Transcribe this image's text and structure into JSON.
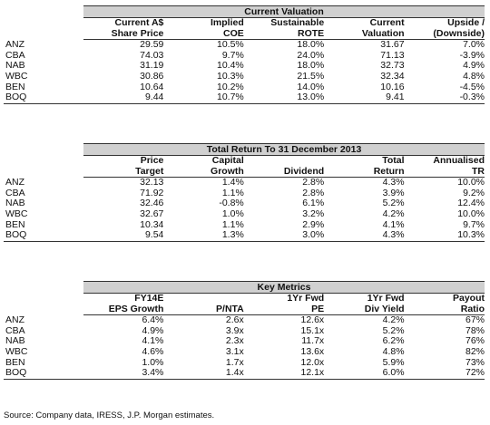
{
  "banks": [
    "ANZ",
    "CBA",
    "NAB",
    "WBC",
    "BEN",
    "BOQ"
  ],
  "current_valuation": {
    "title": "Current Valuation",
    "headers": [
      [
        "Current A$",
        "Share Price"
      ],
      [
        "Implied",
        "COE"
      ],
      [
        "Sustainable",
        "ROTE"
      ],
      [
        "Current",
        "Valuation"
      ],
      [
        "Upside /",
        "(Downside)"
      ]
    ],
    "rows": [
      [
        "29.59",
        "10.5%",
        "18.0%",
        "31.67",
        "7.0%"
      ],
      [
        "74.03",
        "9.7%",
        "24.0%",
        "71.13",
        "-3.9%"
      ],
      [
        "31.19",
        "10.4%",
        "18.0%",
        "32.73",
        "4.9%"
      ],
      [
        "30.86",
        "10.3%",
        "21.5%",
        "32.34",
        "4.8%"
      ],
      [
        "10.64",
        "10.2%",
        "14.0%",
        "10.16",
        "-4.5%"
      ],
      [
        "9.44",
        "10.7%",
        "13.0%",
        "9.41",
        "-0.3%"
      ]
    ]
  },
  "total_return": {
    "title": "Total Return To 31 December 2013",
    "headers": [
      [
        "Price",
        "Target"
      ],
      [
        "Capital",
        "Growth"
      ],
      [
        "",
        "Dividend"
      ],
      [
        "Total",
        "Return"
      ],
      [
        "Annualised",
        "TR"
      ]
    ],
    "rows": [
      [
        "32.13",
        "1.4%",
        "2.8%",
        "4.3%",
        "10.0%"
      ],
      [
        "71.92",
        "1.1%",
        "2.8%",
        "3.9%",
        "9.2%"
      ],
      [
        "32.46",
        "-0.8%",
        "6.1%",
        "5.2%",
        "12.4%"
      ],
      [
        "32.67",
        "1.0%",
        "3.2%",
        "4.2%",
        "10.0%"
      ],
      [
        "10.34",
        "1.1%",
        "2.9%",
        "4.1%",
        "9.7%"
      ],
      [
        "9.54",
        "1.3%",
        "3.0%",
        "4.3%",
        "10.3%"
      ]
    ]
  },
  "key_metrics": {
    "title": "Key Metrics",
    "headers": [
      [
        "FY14E",
        "EPS Growth"
      ],
      [
        "",
        "P/NTA"
      ],
      [
        "1Yr Fwd",
        "PE"
      ],
      [
        "1Yr Fwd",
        "Div Yield"
      ],
      [
        "Payout",
        "Ratio"
      ]
    ],
    "rows": [
      [
        "6.4%",
        "2.6x",
        "12.6x",
        "4.2%",
        "67%"
      ],
      [
        "4.9%",
        "3.9x",
        "15.1x",
        "5.2%",
        "78%"
      ],
      [
        "4.1%",
        "2.3x",
        "11.7x",
        "6.2%",
        "76%"
      ],
      [
        "4.6%",
        "3.1x",
        "13.6x",
        "4.8%",
        "82%"
      ],
      [
        "1.0%",
        "1.7x",
        "12.0x",
        "5.9%",
        "73%"
      ],
      [
        "3.4%",
        "1.4x",
        "12.1x",
        "6.0%",
        "72%"
      ]
    ]
  },
  "source": "Source: Company data, IRESS, J.P. Morgan estimates."
}
